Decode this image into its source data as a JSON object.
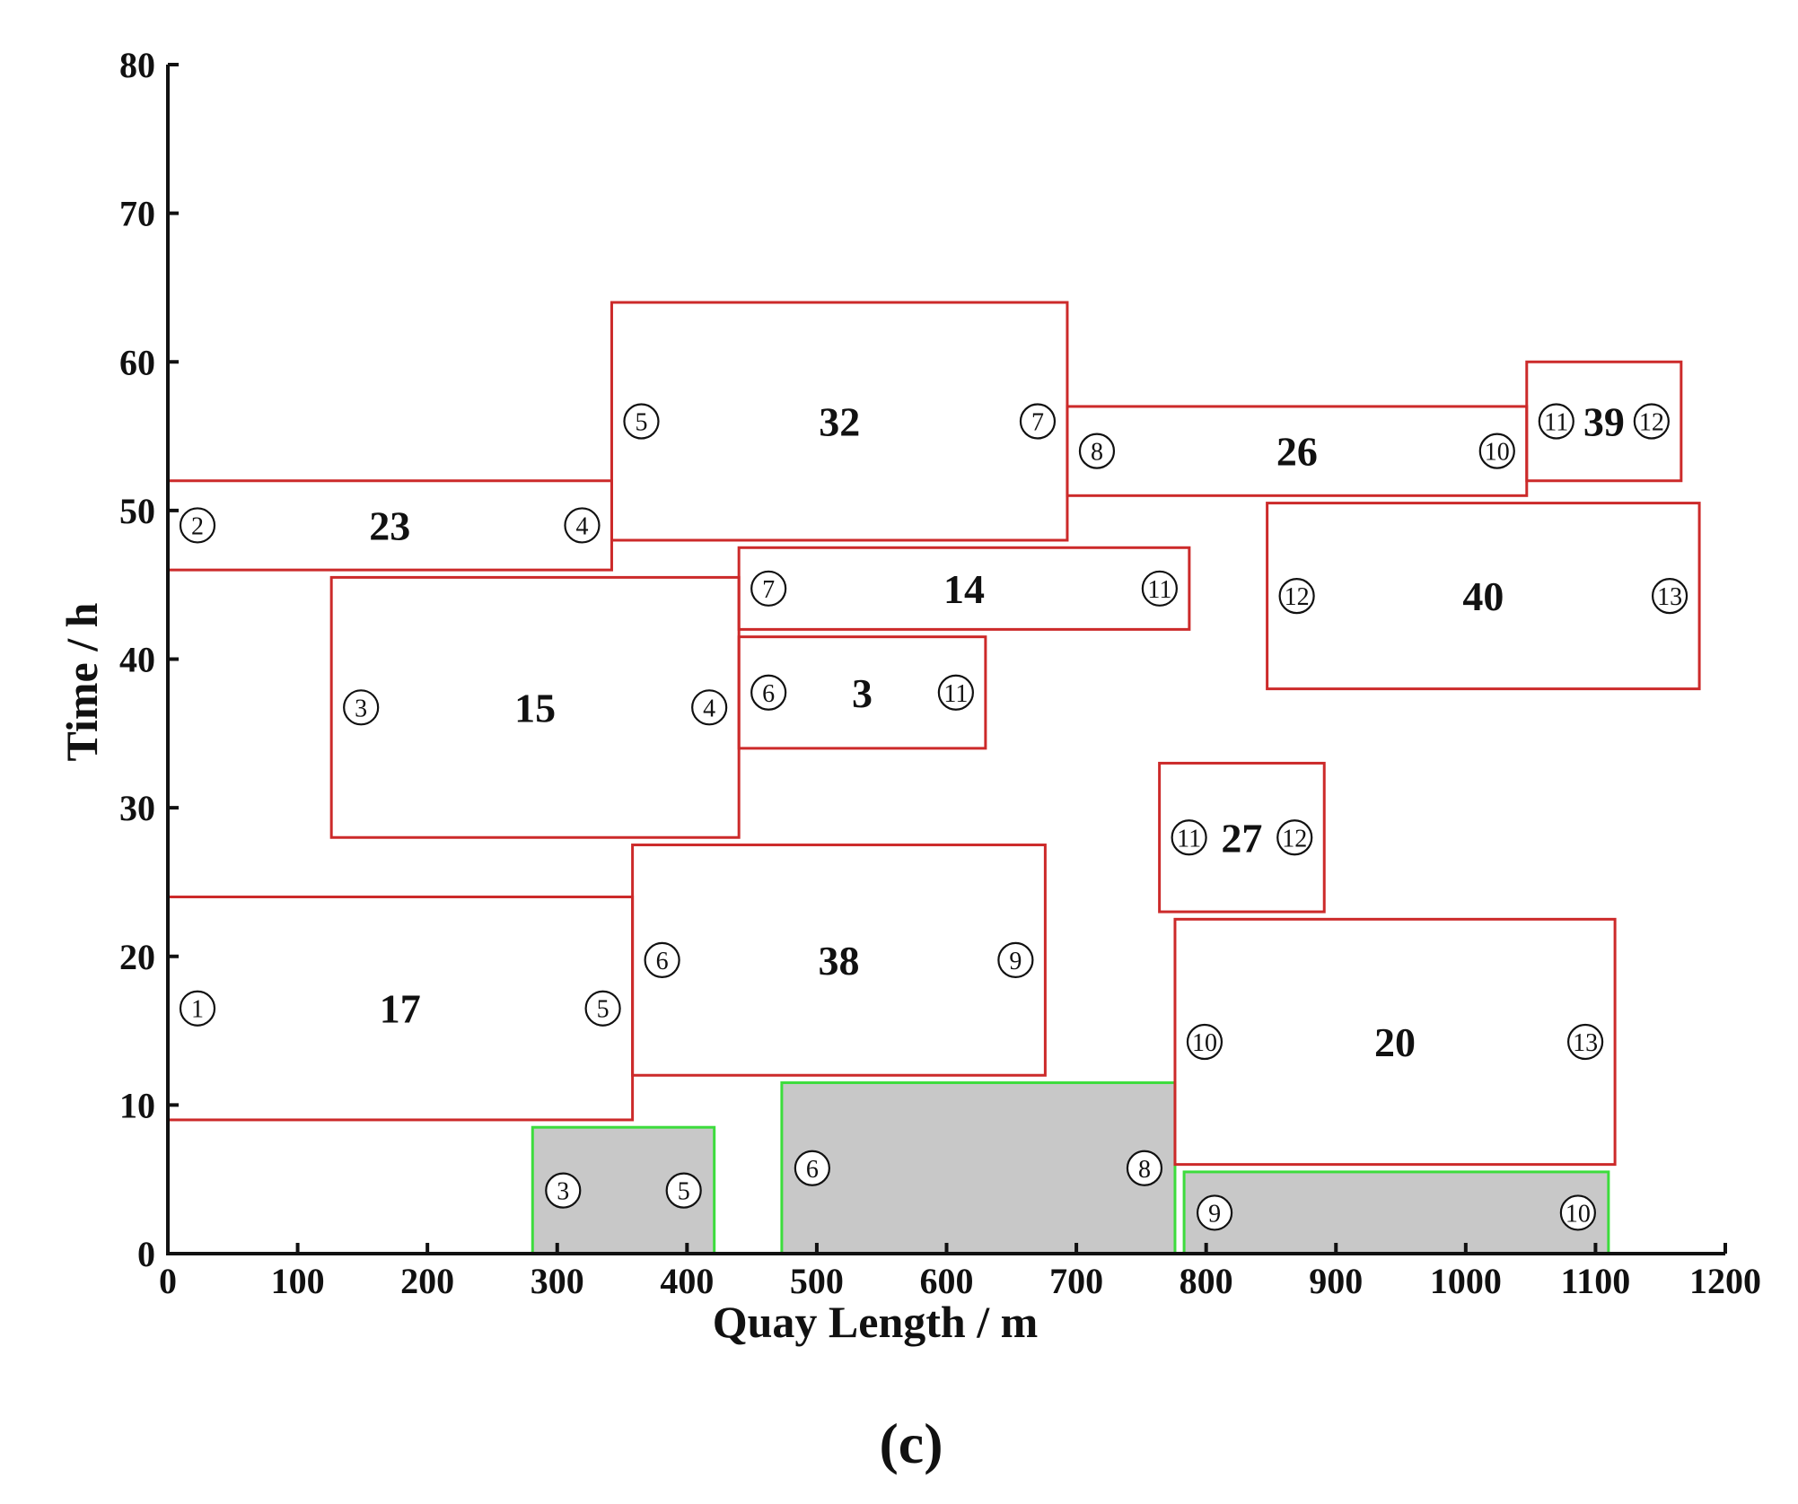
{
  "chart_data": {
    "type": "berth-allocation",
    "xlabel": "Quay Length / m",
    "ylabel": "Time / h",
    "xlim": [
      0,
      1200
    ],
    "ylim": [
      0,
      80
    ],
    "xticks": [
      0,
      100,
      200,
      300,
      400,
      500,
      600,
      700,
      800,
      900,
      1000,
      1100,
      1200
    ],
    "yticks": [
      0,
      10,
      20,
      30,
      40,
      50,
      60,
      70,
      80
    ],
    "panel_label": "(c)",
    "colors": {
      "red_border": "#cc2a2a",
      "green_border": "#3ddc3d",
      "gray_fill": "#c8c8c8",
      "axis": "#111111"
    },
    "vessels": [
      {
        "label": "17",
        "x": [
          0,
          358
        ],
        "y": [
          9,
          24
        ],
        "left_num": "1",
        "right_num": "5"
      },
      {
        "label": "38",
        "x": [
          358,
          676
        ],
        "y": [
          12,
          27.5
        ],
        "left_num": "6",
        "right_num": "9"
      },
      {
        "label": "15",
        "x": [
          126,
          440
        ],
        "y": [
          28,
          45.5
        ],
        "left_num": "3",
        "right_num": "4"
      },
      {
        "label": "23",
        "x": [
          0,
          342
        ],
        "y": [
          46,
          52
        ],
        "left_num": "2",
        "right_num": "4"
      },
      {
        "label": "32",
        "x": [
          342,
          693
        ],
        "y": [
          48,
          64
        ],
        "left_num": "5",
        "right_num": "7"
      },
      {
        "label": "3",
        "x": [
          440,
          630
        ],
        "y": [
          34,
          41.5
        ],
        "left_num": "6",
        "right_num": "11"
      },
      {
        "label": "14",
        "x": [
          440,
          787
        ],
        "y": [
          42,
          47.5
        ],
        "left_num": "7",
        "right_num": "11"
      },
      {
        "label": "26",
        "x": [
          693,
          1047
        ],
        "y": [
          51,
          57
        ],
        "left_num": "8",
        "right_num": "10"
      },
      {
        "label": "39",
        "x": [
          1047,
          1166
        ],
        "y": [
          52,
          60
        ],
        "left_num": "11",
        "right_num": "12"
      },
      {
        "label": "40",
        "x": [
          847,
          1180
        ],
        "y": [
          38,
          50.5
        ],
        "left_num": "12",
        "right_num": "13"
      },
      {
        "label": "27",
        "x": [
          764,
          891
        ],
        "y": [
          23,
          33
        ],
        "left_num": "11",
        "right_num": "12"
      },
      {
        "label": "20",
        "x": [
          776,
          1115
        ],
        "y": [
          6,
          22.5
        ],
        "left_num": "10",
        "right_num": "13"
      }
    ],
    "occupied": [
      {
        "x": [
          281,
          421
        ],
        "y": [
          0,
          8.5
        ],
        "left_num": "3",
        "right_num": "5"
      },
      {
        "x": [
          473,
          776
        ],
        "y": [
          0,
          11.5
        ],
        "left_num": "6",
        "right_num": "8"
      },
      {
        "x": [
          783,
          1110
        ],
        "y": [
          0,
          5.5
        ],
        "left_num": "9",
        "right_num": "10"
      }
    ]
  }
}
